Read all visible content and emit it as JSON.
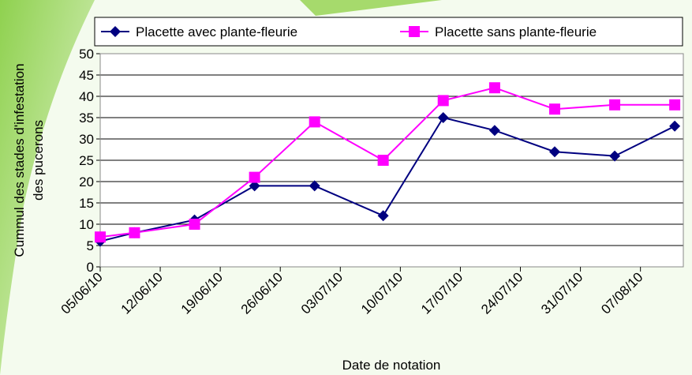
{
  "chart_data": {
    "type": "line",
    "y_label_lines": [
      "Cummul des stades d'infestation",
      "des pucerons"
    ],
    "x_label": "Date de notation",
    "x": [
      "2010-06-05",
      "2010-06-09",
      "2010-06-16",
      "2010-06-23",
      "2010-06-30",
      "2010-07-08",
      "2010-07-15",
      "2010-07-21",
      "2010-07-28",
      "2010-08-04",
      "2010-08-11"
    ],
    "series": [
      {
        "name": "Placette avec plante-fleurie",
        "color": "#000080",
        "marker": "diamond",
        "values": [
          6,
          8,
          11,
          19,
          19,
          12,
          35,
          32,
          27,
          26,
          33
        ]
      },
      {
        "name": "Placette sans plante-fleurie",
        "color": "#ff00ff",
        "marker": "square",
        "values": [
          7,
          8,
          10,
          21,
          34,
          25,
          39,
          42,
          37,
          38,
          38
        ]
      }
    ],
    "xlim": [
      "2010-06-05",
      "2010-08-12"
    ],
    "xticks": [
      {
        "value": "2010-06-05",
        "label": "05/06/10"
      },
      {
        "value": "2010-06-12",
        "label": "12/06/10"
      },
      {
        "value": "2010-06-19",
        "label": "19/06/10"
      },
      {
        "value": "2010-06-26",
        "label": "26/06/10"
      },
      {
        "value": "2010-07-03",
        "label": "03/07/10"
      },
      {
        "value": "2010-07-10",
        "label": "10/07/10"
      },
      {
        "value": "2010-07-17",
        "label": "17/07/10"
      },
      {
        "value": "2010-07-24",
        "label": "24/07/10"
      },
      {
        "value": "2010-07-31",
        "label": "31/07/10"
      },
      {
        "value": "2010-08-07",
        "label": "07/08/10"
      }
    ],
    "ylim": [
      0,
      50
    ],
    "yticks": [
      0,
      5,
      10,
      15,
      20,
      25,
      30,
      35,
      40,
      45,
      50
    ],
    "grid": true,
    "legend": "top"
  }
}
